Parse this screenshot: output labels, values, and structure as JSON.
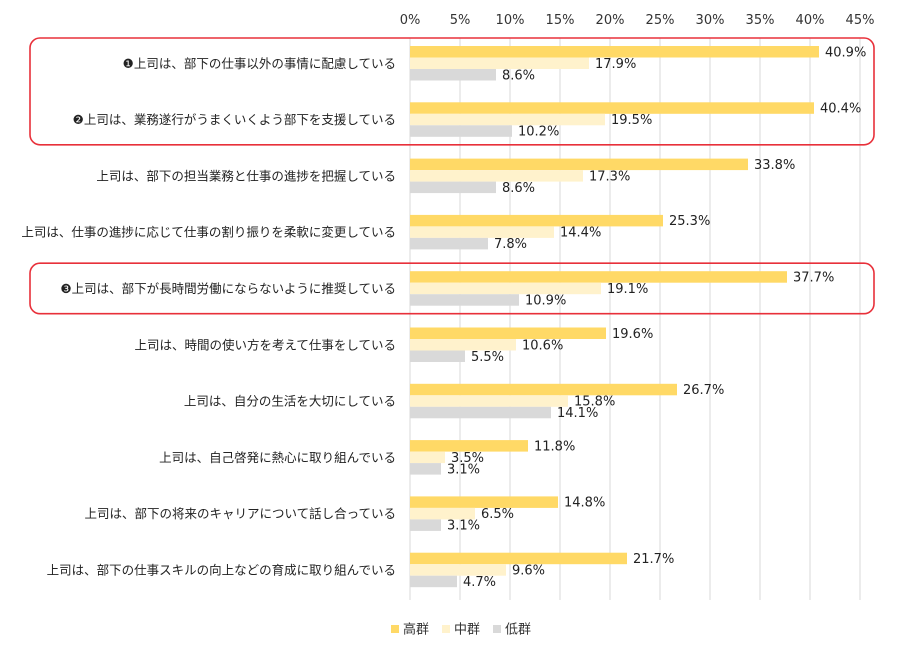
{
  "chart_data": {
    "type": "bar",
    "orientation": "horizontal",
    "xlim": [
      0,
      45
    ],
    "x_ticks": [
      "0%",
      "5%",
      "10%",
      "15%",
      "20%",
      "25%",
      "30%",
      "35%",
      "40%",
      "45%"
    ],
    "value_suffix": "%",
    "grid": true,
    "legend_position": "bottom",
    "categories": [
      "❶上司は、部下の仕事以外の事情に配慮している",
      "❷上司は、業務遂行がうまくいくよう部下を支援している",
      "上司は、部下の担当業務と仕事の進捗を把握している",
      "上司は、仕事の進捗に応じて仕事の割り振りを柔軟に変更している",
      "❸上司は、部下が長時間労働にならないように推奨している",
      "上司は、時間の使い方を考えて仕事をしている",
      "上司は、自分の生活を大切にしている",
      "上司は、自己啓発に熱心に取り組んでいる",
      "上司は、部下の将来のキャリアについて話し合っている",
      "上司は、部下の仕事スキルの向上などの育成に取り組んでいる"
    ],
    "series": [
      {
        "name": "高群",
        "color": "#FFD966",
        "values": [
          40.9,
          40.4,
          33.8,
          25.3,
          37.7,
          19.6,
          26.7,
          11.8,
          14.8,
          21.7
        ]
      },
      {
        "name": "中群",
        "color": "#FFF2CC",
        "values": [
          17.9,
          19.5,
          17.3,
          14.4,
          19.1,
          10.6,
          15.8,
          3.5,
          6.5,
          9.6
        ]
      },
      {
        "name": "低群",
        "color": "#D9D9D9",
        "values": [
          8.6,
          10.2,
          8.6,
          7.8,
          10.9,
          5.5,
          14.1,
          3.1,
          3.1,
          4.7
        ]
      }
    ],
    "highlight_color": "#E8303A",
    "highlight_groups": [
      [
        0,
        1
      ],
      [
        4
      ]
    ]
  }
}
